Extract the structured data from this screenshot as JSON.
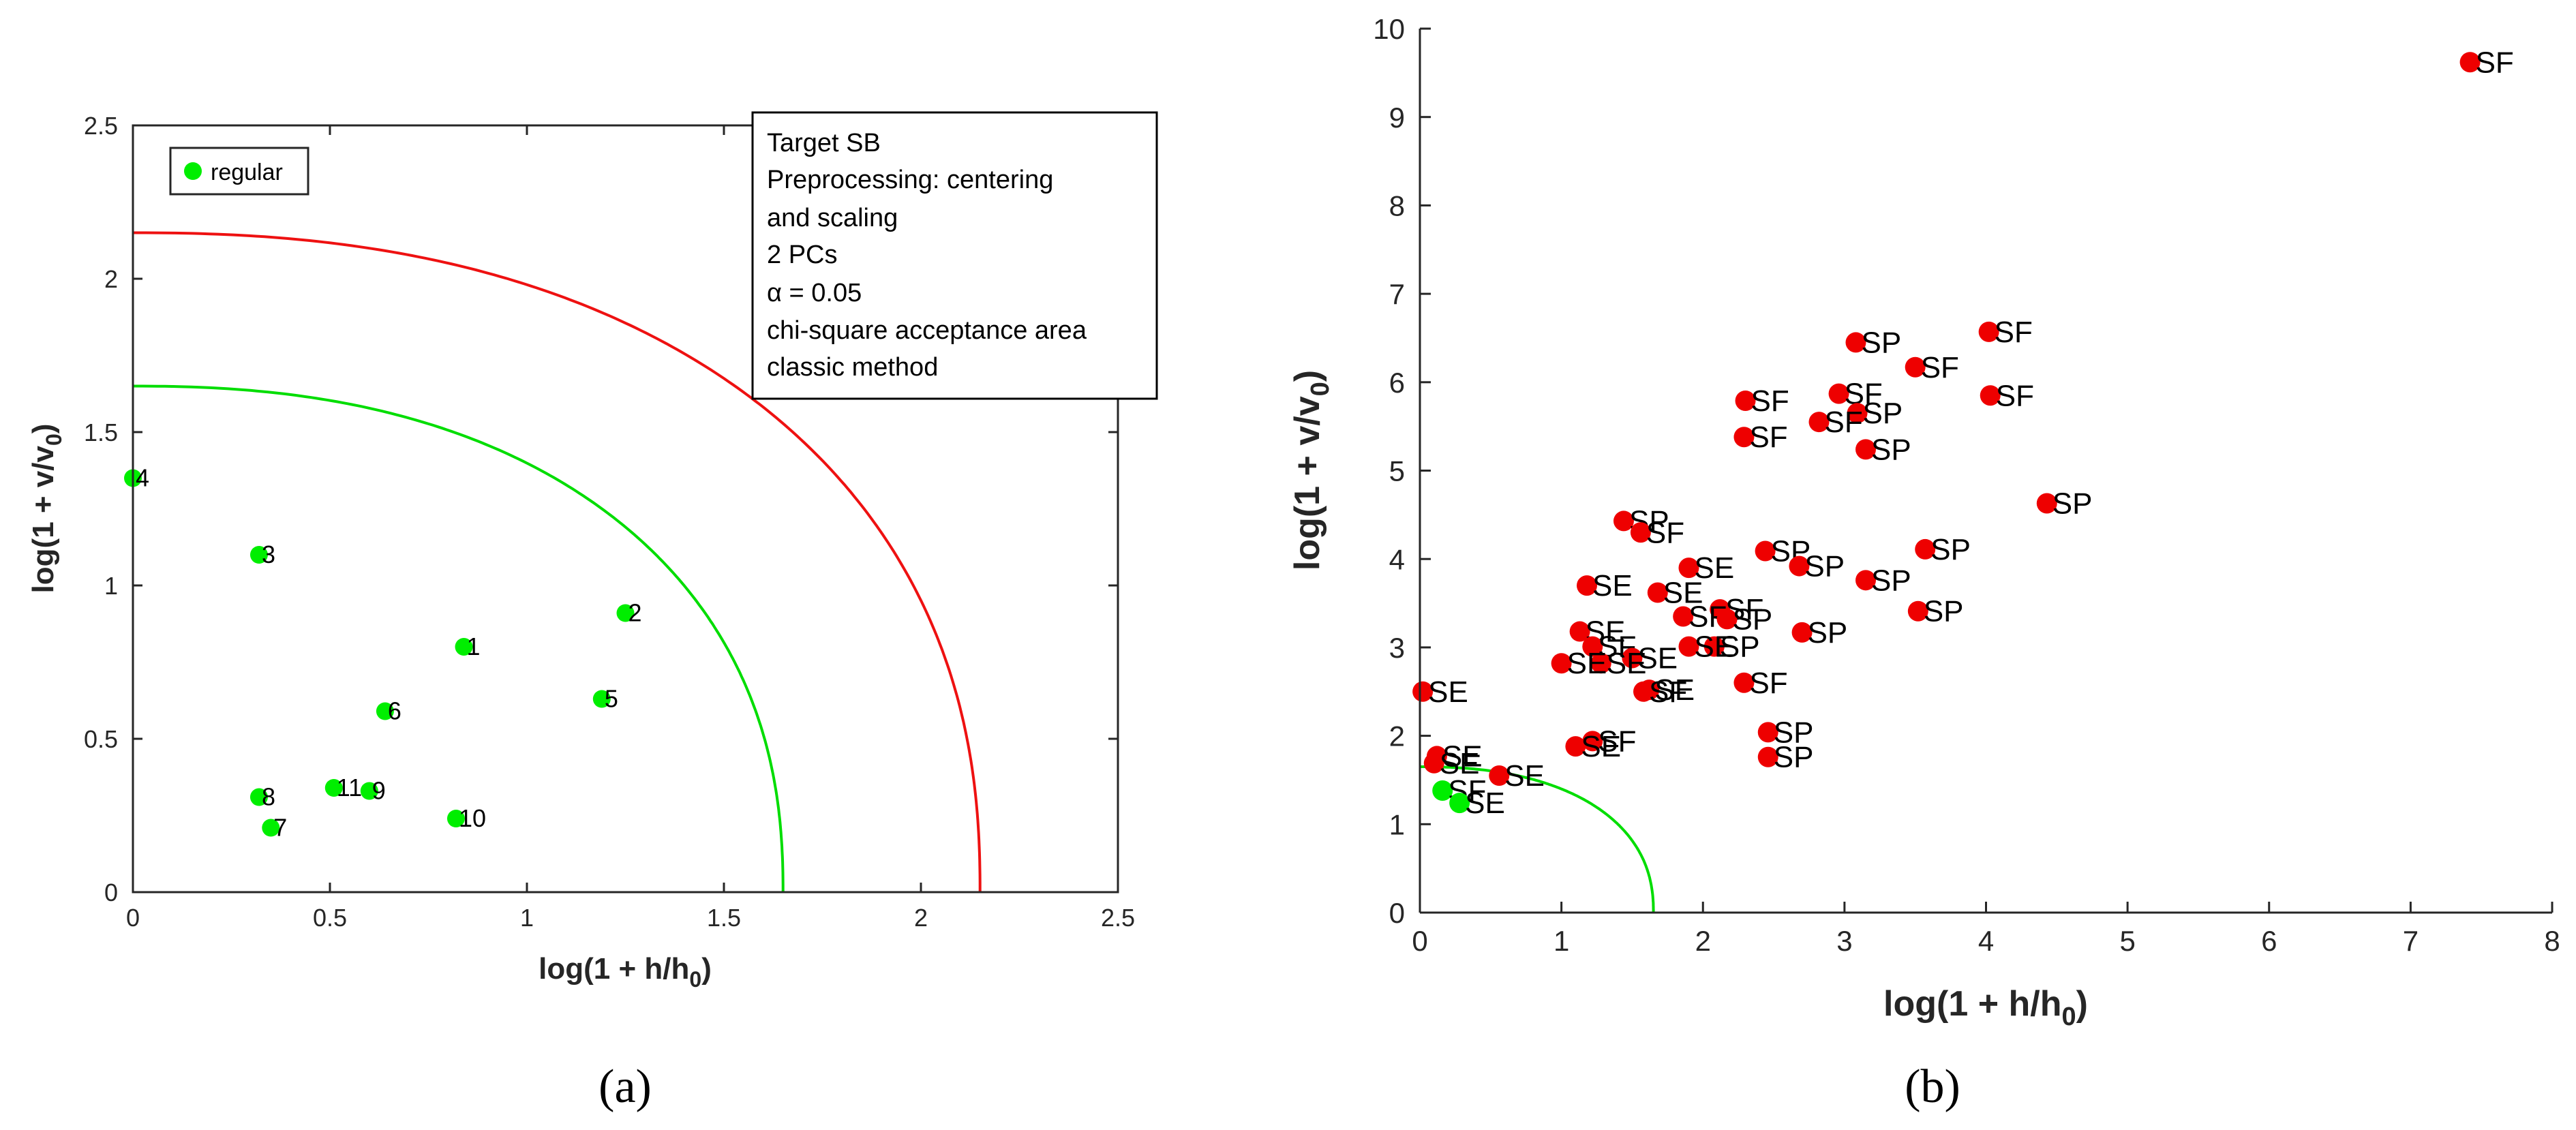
{
  "colors": {
    "regular": "#00ee00",
    "outlier": "#ee0000",
    "green_curve": "#00dd00",
    "red_curve": "#ee1111",
    "axis": "#262626"
  },
  "chart_data": [
    {
      "panel": "a",
      "type": "scatter",
      "caption": "(a)",
      "xlabel": "log(1 + h/h0)",
      "ylabel": "log(1 + v/v0)",
      "xlim": [
        0,
        2.5
      ],
      "ylim": [
        0,
        2.5
      ],
      "xticks": [
        0,
        0.5,
        1,
        1.5,
        2,
        2.5
      ],
      "xtick_labels": [
        "0",
        "0.5",
        "1",
        "1.5",
        "2",
        "2.5"
      ],
      "yticks": [
        0,
        0.5,
        1,
        1.5,
        2,
        2.5
      ],
      "ytick_labels": [
        "0",
        "0.5",
        "1",
        "1.5",
        "2",
        "2.5"
      ],
      "legend": {
        "position": "top-left",
        "entries": [
          {
            "label": "regular",
            "color": "#00ee00"
          }
        ]
      },
      "info_box": {
        "position": "top-right",
        "lines": [
          "Target SB",
          "Preprocessing: centering",
          "and scaling",
          "2 PCs",
          "α = 0.05",
          "chi-square acceptance area",
          "classic method"
        ]
      },
      "boundaries": [
        {
          "name": "green",
          "x_intercept": 1.65,
          "y_intercept": 1.65,
          "curve_exponent": 2.3
        },
        {
          "name": "red",
          "x_intercept": 2.15,
          "y_intercept": 2.15,
          "curve_exponent": 2.3
        }
      ],
      "points": [
        {
          "label": "1",
          "x": 0.84,
          "y": 0.8
        },
        {
          "label": "2",
          "x": 1.25,
          "y": 0.91
        },
        {
          "label": "3",
          "x": 0.32,
          "y": 1.1
        },
        {
          "label": "4",
          "x": 0.0,
          "y": 1.35
        },
        {
          "label": "5",
          "x": 1.19,
          "y": 0.63
        },
        {
          "label": "6",
          "x": 0.64,
          "y": 0.59
        },
        {
          "label": "7",
          "x": 0.35,
          "y": 0.21
        },
        {
          "label": "8",
          "x": 0.32,
          "y": 0.31
        },
        {
          "label": "9",
          "x": 0.6,
          "y": 0.33
        },
        {
          "label": "10",
          "x": 0.82,
          "y": 0.24
        },
        {
          "label": "11",
          "x": 0.51,
          "y": 0.34
        }
      ]
    },
    {
      "panel": "b",
      "type": "scatter",
      "caption": "(b)",
      "xlabel": "log(1 + h/h0)",
      "ylabel": "log(1 + v/v0)",
      "xlim": [
        0,
        8
      ],
      "ylim": [
        0,
        10
      ],
      "xticks": [
        0,
        1,
        2,
        3,
        4,
        5,
        6,
        7,
        8
      ],
      "xtick_labels": [
        "0",
        "1",
        "2",
        "3",
        "4",
        "5",
        "6",
        "7",
        "8"
      ],
      "yticks": [
        0,
        1,
        2,
        3,
        4,
        5,
        6,
        7,
        8,
        9,
        10
      ],
      "ytick_labels": [
        "0",
        "1",
        "2",
        "3",
        "4",
        "5",
        "6",
        "7",
        "8",
        "9",
        "10"
      ],
      "boundaries": [
        {
          "name": "green",
          "x_intercept": 1.65,
          "y_intercept": 1.65,
          "curve_exponent": 2.3
        }
      ],
      "points": [
        {
          "label": "SF",
          "x": 7.42,
          "y": 9.62,
          "color": "red"
        },
        {
          "label": "SF",
          "x": 4.02,
          "y": 6.57,
          "color": "red"
        },
        {
          "label": "SP",
          "x": 3.08,
          "y": 6.45,
          "color": "red"
        },
        {
          "label": "SF",
          "x": 3.5,
          "y": 6.17,
          "color": "red"
        },
        {
          "label": "SF",
          "x": 4.03,
          "y": 5.85,
          "color": "red"
        },
        {
          "label": "SF",
          "x": 2.96,
          "y": 5.87,
          "color": "red"
        },
        {
          "label": "SF",
          "x": 2.3,
          "y": 5.79,
          "color": "red"
        },
        {
          "label": "SP",
          "x": 3.09,
          "y": 5.65,
          "color": "red"
        },
        {
          "label": "SF",
          "x": 2.82,
          "y": 5.55,
          "color": "red"
        },
        {
          "label": "SF",
          "x": 2.29,
          "y": 5.38,
          "color": "red"
        },
        {
          "label": "SP",
          "x": 3.15,
          "y": 5.24,
          "color": "red"
        },
        {
          "label": "SP",
          "x": 4.43,
          "y": 4.63,
          "color": "red"
        },
        {
          "label": "SP",
          "x": 1.44,
          "y": 4.43,
          "color": "red"
        },
        {
          "label": "SF",
          "x": 1.56,
          "y": 4.3,
          "color": "red"
        },
        {
          "label": "SP",
          "x": 3.57,
          "y": 4.11,
          "color": "red"
        },
        {
          "label": "SP",
          "x": 2.44,
          "y": 4.09,
          "color": "red"
        },
        {
          "label": "SP",
          "x": 2.68,
          "y": 3.92,
          "color": "red"
        },
        {
          "label": "SE",
          "x": 1.9,
          "y": 3.9,
          "color": "red"
        },
        {
          "label": "SP",
          "x": 3.15,
          "y": 3.76,
          "color": "red"
        },
        {
          "label": "SE",
          "x": 1.18,
          "y": 3.7,
          "color": "red"
        },
        {
          "label": "SE",
          "x": 1.68,
          "y": 3.62,
          "color": "red"
        },
        {
          "label": "SF",
          "x": 2.12,
          "y": 3.43,
          "color": "red"
        },
        {
          "label": "SP",
          "x": 3.52,
          "y": 3.41,
          "color": "red"
        },
        {
          "label": "SF",
          "x": 1.86,
          "y": 3.35,
          "color": "red"
        },
        {
          "label": "SP",
          "x": 2.17,
          "y": 3.32,
          "color": "red"
        },
        {
          "label": "SP",
          "x": 2.7,
          "y": 3.17,
          "color": "red"
        },
        {
          "label": "SE",
          "x": 1.13,
          "y": 3.18,
          "color": "red"
        },
        {
          "label": "SP",
          "x": 2.08,
          "y": 3.01,
          "color": "red"
        },
        {
          "label": "SE",
          "x": 1.9,
          "y": 3.01,
          "color": "red"
        },
        {
          "label": "SF",
          "x": 1.22,
          "y": 3.01,
          "color": "red"
        },
        {
          "label": "SE",
          "x": 1.5,
          "y": 2.88,
          "color": "red"
        },
        {
          "label": "SE",
          "x": 1.28,
          "y": 2.82,
          "color": "red"
        },
        {
          "label": "SE",
          "x": 1.0,
          "y": 2.82,
          "color": "red"
        },
        {
          "label": "SF",
          "x": 2.29,
          "y": 2.6,
          "color": "red"
        },
        {
          "label": "SE",
          "x": 1.62,
          "y": 2.52,
          "color": "red"
        },
        {
          "label": "SF",
          "x": 1.58,
          "y": 2.5,
          "color": "red"
        },
        {
          "label": "SE",
          "x": 0.02,
          "y": 2.5,
          "color": "red"
        },
        {
          "label": "SP",
          "x": 2.46,
          "y": 2.04,
          "color": "red"
        },
        {
          "label": "SF",
          "x": 1.22,
          "y": 1.94,
          "color": "red"
        },
        {
          "label": "SE",
          "x": 1.1,
          "y": 1.88,
          "color": "red"
        },
        {
          "label": "SP",
          "x": 2.46,
          "y": 1.76,
          "color": "red"
        },
        {
          "label": "SE",
          "x": 0.12,
          "y": 1.77,
          "color": "red"
        },
        {
          "label": "SE",
          "x": 0.1,
          "y": 1.69,
          "color": "red"
        },
        {
          "label": "SE",
          "x": 0.56,
          "y": 1.55,
          "color": "red"
        },
        {
          "label": "SF",
          "x": 0.16,
          "y": 1.38,
          "color": "green"
        },
        {
          "label": "SE",
          "x": 0.28,
          "y": 1.24,
          "color": "green"
        }
      ]
    }
  ]
}
